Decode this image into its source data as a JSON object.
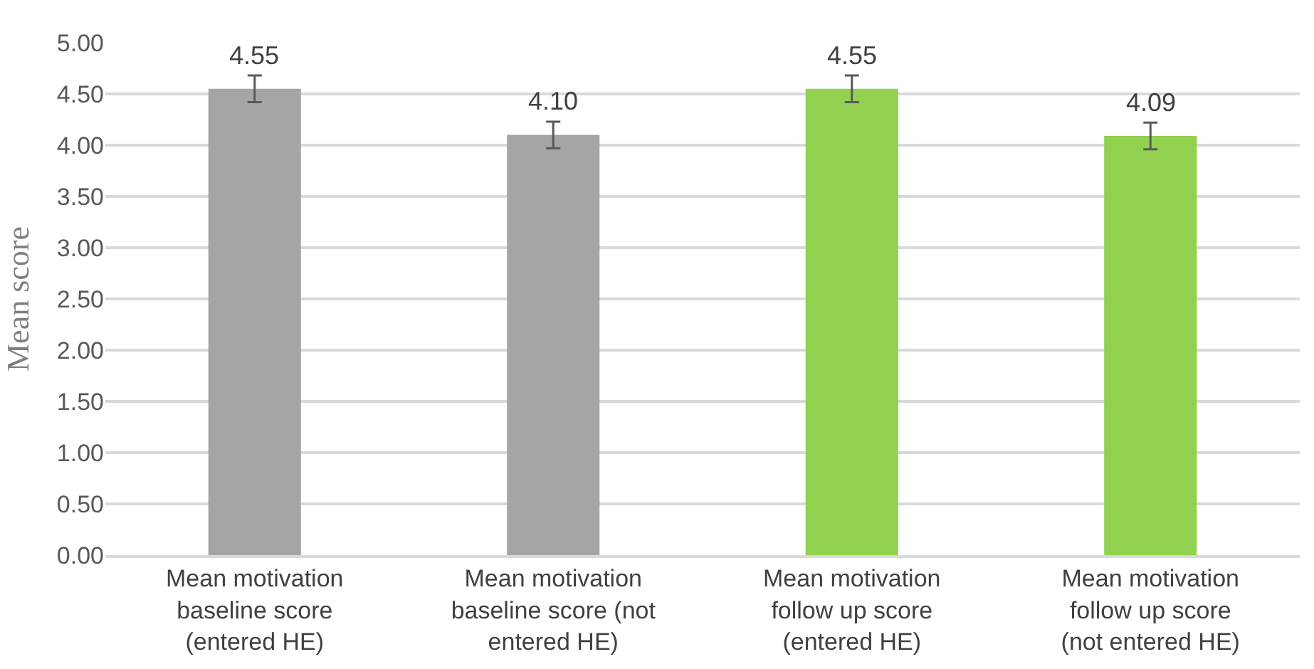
{
  "chart_data": {
    "type": "bar",
    "ylabel": "Mean score",
    "categories": [
      "Mean motivation\nbaseline score\n(entered HE)",
      "Mean motivation\nbaseline score (not\nentered HE)",
      "Mean motivation\nfollow up score\n(entered HE)",
      "Mean motivation\nfollow up score\n(not entered HE)"
    ],
    "values": [
      4.55,
      4.1,
      4.55,
      4.09
    ],
    "errors": [
      0.13,
      0.13,
      0.13,
      0.13
    ],
    "colors": [
      "#a5a5a5",
      "#a5a5a5",
      "#92d050",
      "#92d050"
    ],
    "value_labels": [
      "4.55",
      "4.10",
      "4.55",
      "4.09"
    ],
    "ylim": [
      0,
      5.0
    ],
    "yticks": [
      {
        "value": 0,
        "label": "0.00"
      },
      {
        "value": 0.5,
        "label": "0.50"
      },
      {
        "value": 1,
        "label": "1.00"
      },
      {
        "value": 1.5,
        "label": "1.50"
      },
      {
        "value": 2,
        "label": "2.00"
      },
      {
        "value": 2.5,
        "label": "2.50"
      },
      {
        "value": 3,
        "label": "3.00"
      },
      {
        "value": 3.5,
        "label": "3.50"
      },
      {
        "value": 4,
        "label": "4.00"
      },
      {
        "value": 4.5,
        "label": "4.50"
      },
      {
        "value": 5,
        "label": "5.00"
      }
    ],
    "grid": "y"
  }
}
